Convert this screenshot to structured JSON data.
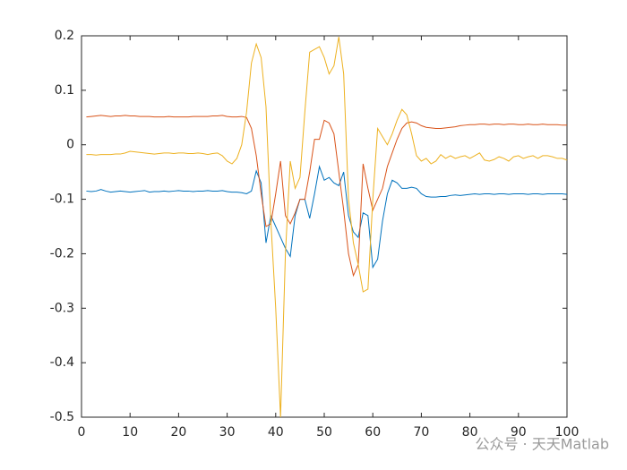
{
  "chart_data": {
    "type": "line",
    "x": [
      1,
      2,
      3,
      4,
      5,
      6,
      7,
      8,
      9,
      10,
      11,
      12,
      13,
      14,
      15,
      16,
      17,
      18,
      19,
      20,
      21,
      22,
      23,
      24,
      25,
      26,
      27,
      28,
      29,
      30,
      31,
      32,
      33,
      34,
      35,
      36,
      37,
      38,
      39,
      40,
      41,
      42,
      43,
      44,
      45,
      46,
      47,
      48,
      49,
      50,
      51,
      52,
      53,
      54,
      55,
      56,
      57,
      58,
      59,
      60,
      61,
      62,
      63,
      64,
      65,
      66,
      67,
      68,
      69,
      70,
      71,
      72,
      73,
      74,
      75,
      76,
      77,
      78,
      79,
      80,
      81,
      82,
      83,
      84,
      85,
      86,
      87,
      88,
      89,
      90,
      91,
      92,
      93,
      94,
      95,
      96,
      97,
      98,
      99,
      100
    ],
    "series": [
      {
        "color": "#0072BD",
        "values": [
          -0.085,
          -0.086,
          -0.085,
          -0.082,
          -0.085,
          -0.087,
          -0.086,
          -0.085,
          -0.086,
          -0.087,
          -0.086,
          -0.085,
          -0.084,
          -0.087,
          -0.086,
          -0.086,
          -0.085,
          -0.086,
          -0.085,
          -0.084,
          -0.085,
          -0.085,
          -0.086,
          -0.085,
          -0.085,
          -0.084,
          -0.085,
          -0.085,
          -0.084,
          -0.086,
          -0.087,
          -0.087,
          -0.088,
          -0.09,
          -0.085,
          -0.048,
          -0.07,
          -0.18,
          -0.13,
          -0.15,
          -0.17,
          -0.19,
          -0.205,
          -0.13,
          -0.1,
          -0.1,
          -0.135,
          -0.09,
          -0.04,
          -0.065,
          -0.06,
          -0.07,
          -0.075,
          -0.05,
          -0.13,
          -0.16,
          -0.17,
          -0.125,
          -0.13,
          -0.225,
          -0.21,
          -0.14,
          -0.09,
          -0.065,
          -0.07,
          -0.08,
          -0.08,
          -0.078,
          -0.08,
          -0.09,
          -0.095,
          -0.096,
          -0.096,
          -0.095,
          -0.095,
          -0.093,
          -0.092,
          -0.093,
          -0.092,
          -0.091,
          -0.09,
          -0.091,
          -0.09,
          -0.09,
          -0.091,
          -0.09,
          -0.09,
          -0.091,
          -0.09,
          -0.09,
          -0.09,
          -0.091,
          -0.09,
          -0.09,
          -0.091,
          -0.09,
          -0.09,
          -0.09,
          -0.09,
          -0.091
        ]
      },
      {
        "color": "#D95319",
        "values": [
          0.051,
          0.052,
          0.053,
          0.054,
          0.053,
          0.052,
          0.053,
          0.053,
          0.054,
          0.053,
          0.053,
          0.052,
          0.052,
          0.052,
          0.051,
          0.051,
          0.051,
          0.052,
          0.051,
          0.051,
          0.051,
          0.051,
          0.052,
          0.052,
          0.052,
          0.052,
          0.053,
          0.053,
          0.054,
          0.052,
          0.051,
          0.051,
          0.052,
          0.05,
          0.03,
          -0.02,
          -0.09,
          -0.15,
          -0.145,
          -0.09,
          -0.03,
          -0.13,
          -0.145,
          -0.125,
          -0.1,
          -0.1,
          -0.05,
          0.01,
          0.01,
          0.045,
          0.04,
          0.02,
          -0.05,
          -0.12,
          -0.2,
          -0.24,
          -0.22,
          -0.035,
          -0.08,
          -0.12,
          -0.1,
          -0.08,
          -0.04,
          -0.015,
          0.01,
          0.03,
          0.04,
          0.042,
          0.04,
          0.035,
          0.032,
          0.031,
          0.03,
          0.03,
          0.031,
          0.032,
          0.033,
          0.035,
          0.036,
          0.037,
          0.037,
          0.038,
          0.038,
          0.037,
          0.038,
          0.038,
          0.037,
          0.038,
          0.038,
          0.037,
          0.037,
          0.038,
          0.037,
          0.037,
          0.038,
          0.037,
          0.037,
          0.037,
          0.036,
          0.036
        ]
      },
      {
        "color": "#EDB120",
        "values": [
          -0.018,
          -0.018,
          -0.019,
          -0.018,
          -0.018,
          -0.018,
          -0.017,
          -0.017,
          -0.015,
          -0.012,
          -0.013,
          -0.014,
          -0.015,
          -0.016,
          -0.017,
          -0.016,
          -0.015,
          -0.015,
          -0.016,
          -0.015,
          -0.015,
          -0.016,
          -0.016,
          -0.015,
          -0.016,
          -0.018,
          -0.016,
          -0.015,
          -0.02,
          -0.03,
          -0.035,
          -0.025,
          0.0,
          0.06,
          0.15,
          0.185,
          0.16,
          0.07,
          -0.14,
          -0.3,
          -0.5,
          -0.2,
          -0.03,
          -0.08,
          -0.06,
          0.06,
          0.17,
          0.175,
          0.18,
          0.16,
          0.13,
          0.145,
          0.198,
          0.13,
          -0.1,
          -0.18,
          -0.22,
          -0.27,
          -0.265,
          -0.1,
          0.03,
          0.015,
          0.0,
          0.02,
          0.045,
          0.065,
          0.055,
          0.02,
          -0.02,
          -0.03,
          -0.025,
          -0.035,
          -0.03,
          -0.018,
          -0.025,
          -0.02,
          -0.025,
          -0.022,
          -0.02,
          -0.025,
          -0.02,
          -0.015,
          -0.028,
          -0.03,
          -0.027,
          -0.022,
          -0.025,
          -0.03,
          -0.022,
          -0.02,
          -0.025,
          -0.022,
          -0.02,
          -0.025,
          -0.02,
          -0.02,
          -0.022,
          -0.025,
          -0.025,
          -0.028
        ]
      }
    ],
    "xlim": [
      0,
      100
    ],
    "xticks": [
      0,
      10,
      20,
      30,
      40,
      50,
      60,
      70,
      80,
      90,
      100
    ],
    "ylim": [
      -0.5,
      0.2
    ],
    "yticks": [
      -0.5,
      -0.4,
      -0.3,
      -0.2,
      -0.1,
      0,
      0.1,
      0.2
    ],
    "grid": false
  },
  "watermark": "公众号 · 天天Matlab"
}
